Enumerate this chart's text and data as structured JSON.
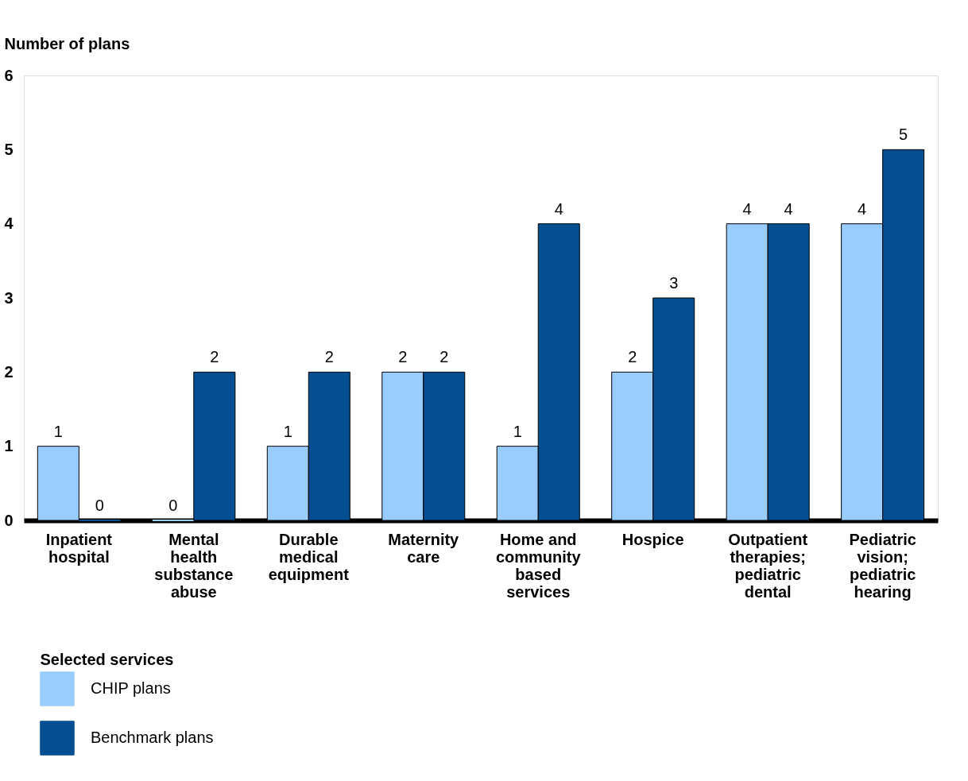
{
  "chart_data": {
    "type": "bar",
    "ylabel": "Number of plans",
    "xlabel": "Selected services",
    "categories": [
      "Inpatient hospital",
      "Mental health substance abuse",
      "Durable medical equipment",
      "Maternity care",
      "Home and community based services",
      "Hospice",
      "Outpatient therapies; pediatric dental",
      "Pediatric vision; pediatric hearing"
    ],
    "series": [
      {
        "name": "CHIP plans",
        "color": "#99ccff",
        "values": [
          1,
          0,
          1,
          2,
          1,
          2,
          4,
          4
        ]
      },
      {
        "name": "Benchmark plans",
        "color": "#044e91",
        "values": [
          0,
          2,
          2,
          2,
          4,
          3,
          4,
          5
        ]
      }
    ],
    "ylim": [
      0,
      6
    ],
    "yticks": [
      0,
      1,
      2,
      3,
      4,
      5,
      6
    ],
    "data_labels": true,
    "legend": "bottom left",
    "grid": false
  }
}
